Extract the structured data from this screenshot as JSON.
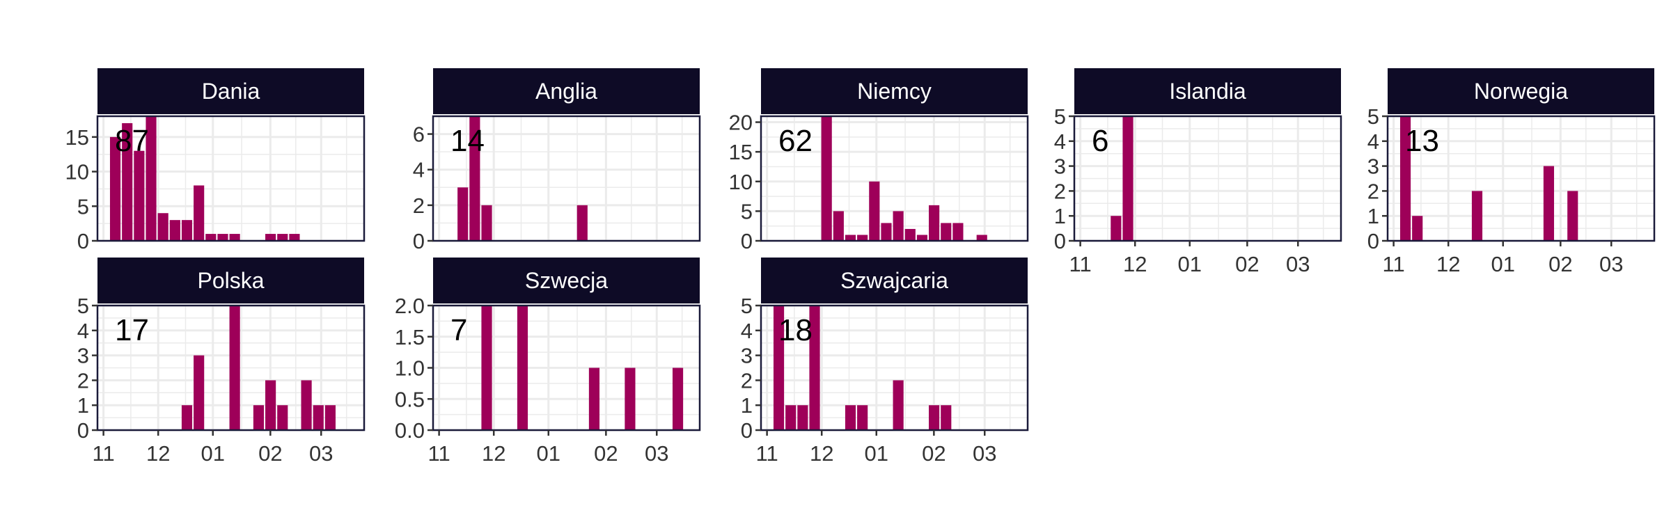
{
  "chart_data": {
    "type": "bar",
    "bar_color": "#9E0059",
    "strip_color": "#0E0B26",
    "grid_color": "#EBEBEB",
    "x_tick_labels": [
      "11",
      "12",
      "01",
      "02",
      "03"
    ],
    "panels": [
      {
        "name": "Dania",
        "total": "87",
        "ylim": [
          0,
          18
        ],
        "y_ticks": [
          0,
          5,
          10,
          15
        ],
        "values": [
          15,
          17,
          13,
          18,
          4,
          3,
          3,
          8,
          1,
          1,
          1,
          0,
          0,
          1,
          1,
          1,
          0,
          0,
          0,
          0,
          0
        ]
      },
      {
        "name": "Anglia",
        "total": "14",
        "ylim": [
          0,
          7
        ],
        "y_ticks": [
          0,
          2,
          4,
          6
        ],
        "values": [
          0,
          3,
          7,
          2,
          0,
          0,
          0,
          0,
          0,
          0,
          0,
          2,
          0,
          0,
          0,
          0,
          0,
          0,
          0,
          0,
          0
        ]
      },
      {
        "name": "Niemcy",
        "total": "62",
        "ylim": [
          0,
          21
        ],
        "y_ticks": [
          0,
          5,
          10,
          15,
          20
        ],
        "values": [
          0,
          0,
          0,
          0,
          21,
          5,
          1,
          1,
          10,
          3,
          5,
          2,
          1,
          6,
          3,
          3,
          0,
          1,
          0,
          0,
          0
        ]
      },
      {
        "name": "Islandia",
        "total": "6",
        "ylim": [
          0,
          5
        ],
        "y_ticks": [
          0,
          1,
          2,
          3,
          4,
          5
        ],
        "values": [
          0,
          0,
          1,
          5,
          0,
          0,
          0,
          0,
          0,
          0,
          0,
          0,
          0,
          0,
          0,
          0,
          0,
          0,
          0,
          0,
          0
        ]
      },
      {
        "name": "Norwegia",
        "total": "13",
        "ylim": [
          0,
          5
        ],
        "y_ticks": [
          0,
          1,
          2,
          3,
          4,
          5
        ],
        "values": [
          5,
          1,
          0,
          0,
          0,
          0,
          2,
          0,
          0,
          0,
          0,
          0,
          3,
          0,
          2,
          0,
          0,
          0,
          0,
          0,
          0
        ]
      },
      {
        "name": "Polska",
        "total": "17",
        "ylim": [
          0,
          5
        ],
        "y_ticks": [
          0,
          1,
          2,
          3,
          4,
          5
        ],
        "values": [
          0,
          0,
          0,
          0,
          0,
          0,
          1,
          3,
          0,
          0,
          5,
          0,
          1,
          2,
          1,
          0,
          2,
          1,
          1,
          0,
          0
        ]
      },
      {
        "name": "Szwecja",
        "total": "7",
        "ylim": [
          0,
          2
        ],
        "y_ticks": [
          0,
          0.5,
          1,
          1.5,
          2
        ],
        "y_tick_labels": [
          "0.0",
          "0.5",
          "1.0",
          "1.5",
          "2.0"
        ],
        "values": [
          0,
          0,
          0,
          2,
          0,
          0,
          2,
          0,
          0,
          0,
          0,
          0,
          1,
          0,
          0,
          1,
          0,
          0,
          0,
          1,
          0
        ]
      },
      {
        "name": "Szwajcaria",
        "total": "18",
        "ylim": [
          0,
          5
        ],
        "y_ticks": [
          0,
          1,
          2,
          3,
          4,
          5
        ],
        "values": [
          5,
          1,
          1,
          5,
          0,
          0,
          1,
          1,
          0,
          0,
          2,
          0,
          0,
          1,
          1,
          0,
          0,
          0,
          0,
          0,
          0
        ]
      }
    ]
  }
}
